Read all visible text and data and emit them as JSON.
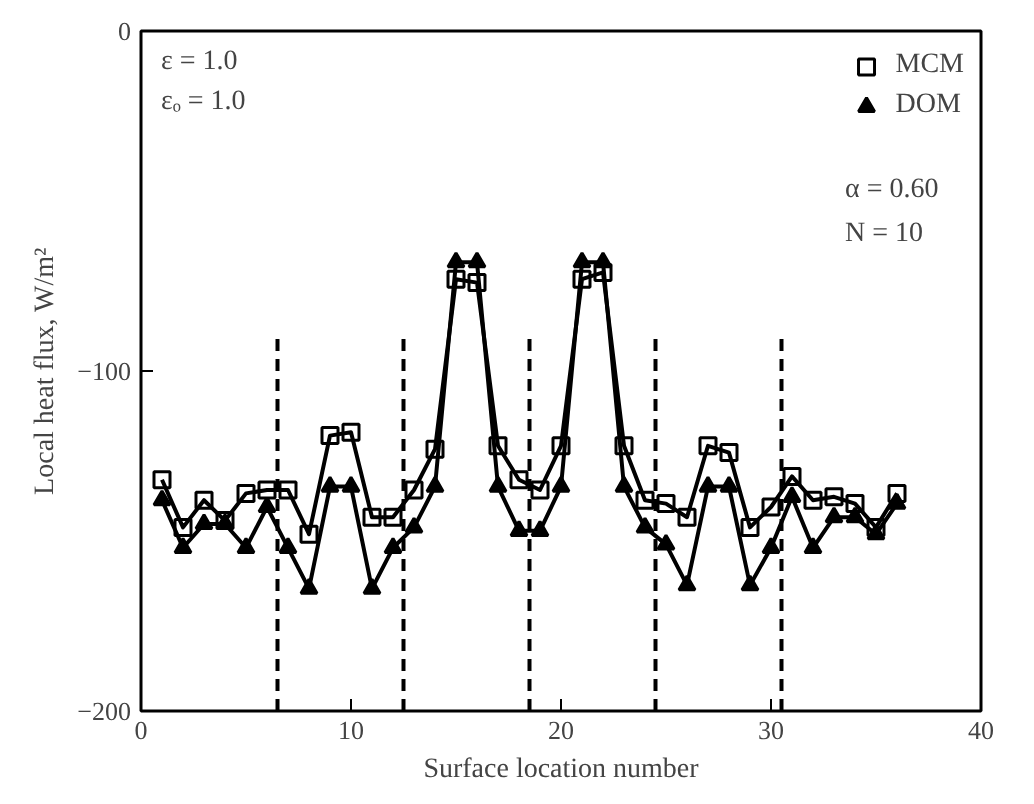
{
  "chart_data": {
    "type": "line",
    "xlabel": "Surface location number",
    "ylabel": "Local heat flux, W/m²",
    "x": [
      1,
      2,
      3,
      4,
      5,
      6,
      7,
      8,
      9,
      10,
      11,
      12,
      13,
      14,
      15,
      16,
      17,
      18,
      19,
      20,
      21,
      22,
      23,
      24,
      25,
      26,
      27,
      28,
      29,
      30,
      31,
      32,
      33,
      34,
      35,
      36
    ],
    "series": [
      {
        "name": "MCM",
        "color": "#000000",
        "marker": "square",
        "values": [
          -132,
          -146,
          -138,
          -144,
          -136,
          -135,
          -135,
          -148,
          -119,
          -118,
          -143,
          -143,
          -135,
          -123,
          -73,
          -74,
          -122,
          -132,
          -135,
          -122,
          -73,
          -71,
          -122,
          -138,
          -139,
          -143,
          -122,
          -124,
          -146,
          -140,
          -131,
          -138,
          -137,
          -139,
          -146,
          -136
        ]
      },
      {
        "name": "DOM",
        "color": "#000000",
        "marker": "triangle",
        "values": [
          -138,
          -152,
          -145,
          -145,
          -152,
          -140,
          -152,
          -164,
          -134,
          -134,
          -164,
          -152,
          -146,
          -134,
          -68,
          -68,
          -134,
          -147,
          -147,
          -134,
          -68,
          -68,
          -134,
          -146,
          -151,
          -163,
          -134,
          -134,
          -163,
          -152,
          -137,
          -152,
          -143,
          -143,
          -148,
          -139
        ]
      }
    ],
    "xlim": [
      0,
      40
    ],
    "xticks": [
      0,
      10,
      20,
      30,
      40
    ],
    "ylim": [
      -200,
      0
    ],
    "yticks": [
      0,
      -100,
      -200
    ],
    "ref_lines": [
      {
        "axis": "x",
        "value": 6.5,
        "line_style": "dashed"
      },
      {
        "axis": "x",
        "value": 12.5,
        "line_style": "dashed"
      },
      {
        "axis": "x",
        "value": 18.5,
        "line_style": "dashed"
      },
      {
        "axis": "x",
        "value": 24.5,
        "line_style": "dashed"
      },
      {
        "axis": "x",
        "value": 30.5,
        "line_style": "dashed"
      }
    ],
    "annotations": [
      "ε   = 1.0",
      "εₒ = 1.0",
      "α = 0.60",
      "N = 10"
    ],
    "legend": "top right",
    "grid": false,
    "line_style": "solid"
  }
}
